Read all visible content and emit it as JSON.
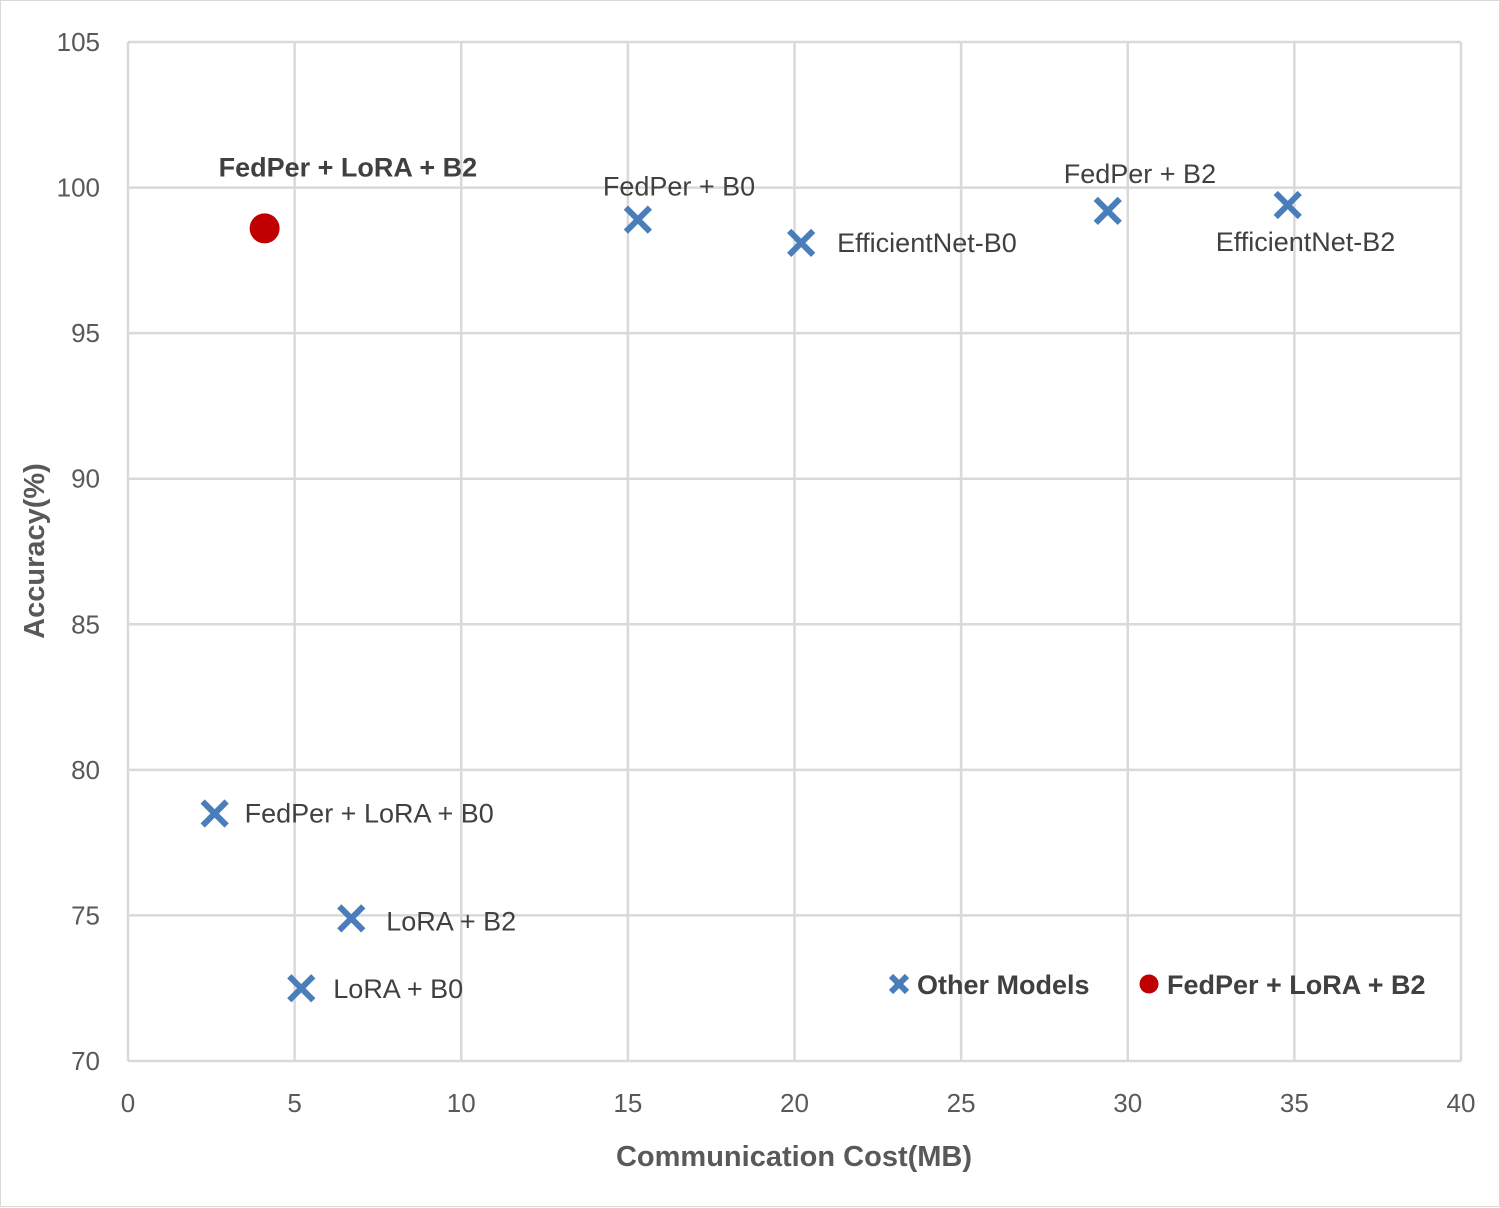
{
  "chart_data": {
    "type": "scatter",
    "title": "",
    "xlabel": "Communication Cost(MB)",
    "ylabel": "Accuracy(%)",
    "xlim": [
      0,
      40
    ],
    "ylim": [
      70,
      105
    ],
    "xticks": [
      0,
      5,
      10,
      15,
      20,
      25,
      30,
      35,
      40
    ],
    "yticks": [
      70,
      75,
      80,
      85,
      90,
      95,
      100,
      105
    ],
    "grid": true,
    "legend_position": "bottom-right",
    "series": [
      {
        "name": "Other Models",
        "marker": "x",
        "color": "#4a7ebb",
        "points": [
          {
            "label": "FedPer + B0",
            "x": 15.3,
            "y": 98.9
          },
          {
            "label": "EfficientNet-B0",
            "x": 20.2,
            "y": 98.1
          },
          {
            "label": "FedPer + B2",
            "x": 29.4,
            "y": 99.2
          },
          {
            "label": "EfficientNet-B2",
            "x": 34.8,
            "y": 99.4
          },
          {
            "label": "FedPer + LoRA + B0",
            "x": 2.6,
            "y": 78.5
          },
          {
            "label": "LoRA + B2",
            "x": 6.7,
            "y": 74.9
          },
          {
            "label": "LoRA + B0",
            "x": 5.2,
            "y": 72.5
          }
        ]
      },
      {
        "name": "FedPer + LoRA + B2",
        "marker": "circle",
        "color": "#c00000",
        "points": [
          {
            "label": "FedPer + LoRA + B2",
            "x": 4.1,
            "y": 98.6
          }
        ]
      }
    ]
  }
}
